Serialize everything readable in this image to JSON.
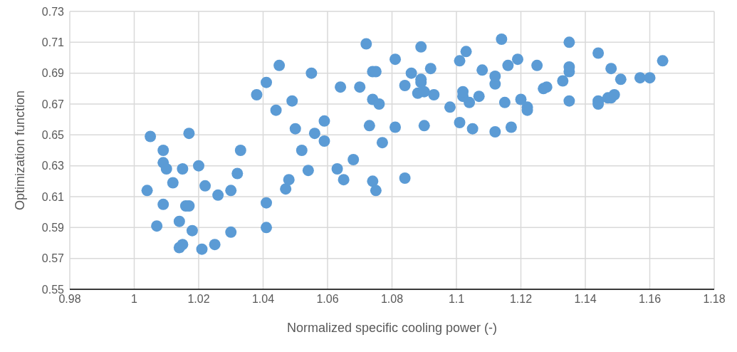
{
  "chart_data": {
    "type": "scatter",
    "xlabel": "Normalized specific cooling power (-)",
    "ylabel": "Optimization function",
    "color": "#5b9bd5",
    "marker": "circle",
    "grid": true,
    "legend": false,
    "xlim": [
      0.98,
      1.18
    ],
    "xticks": [
      0.98,
      1,
      1.02,
      1.04,
      1.06,
      1.08,
      1.1,
      1.12,
      1.14,
      1.16,
      1.18
    ],
    "ylim": [
      0.55,
      0.73
    ],
    "yticks": [
      0.55,
      0.57,
      0.59,
      0.61,
      0.63,
      0.65,
      0.67,
      0.69,
      0.71,
      0.73
    ],
    "x": [
      1.004,
      1.005,
      1.007,
      1.009,
      1.009,
      1.01,
      1.009,
      1.012,
      1.014,
      1.015,
      1.014,
      1.015,
      1.016,
      1.017,
      1.017,
      1.018,
      1.02,
      1.021,
      1.022,
      1.025,
      1.026,
      1.03,
      1.03,
      1.032,
      1.033,
      1.038,
      1.041,
      1.041,
      1.041,
      1.044,
      1.045,
      1.047,
      1.048,
      1.049,
      1.05,
      1.052,
      1.054,
      1.055,
      1.056,
      1.059,
      1.059,
      1.063,
      1.064,
      1.065,
      1.068,
      1.07,
      1.072,
      1.073,
      1.074,
      1.075,
      1.074,
      1.074,
      1.075,
      1.076,
      1.077,
      1.081,
      1.081,
      1.084,
      1.084,
      1.086,
      1.088,
      1.089,
      1.089,
      1.089,
      1.09,
      1.09,
      1.092,
      1.093,
      1.098,
      1.101,
      1.101,
      1.102,
      1.102,
      1.103,
      1.104,
      1.105,
      1.107,
      1.108,
      1.112,
      1.112,
      1.112,
      1.114,
      1.115,
      1.116,
      1.117,
      1.119,
      1.12,
      1.122,
      1.122,
      1.125,
      1.127,
      1.128,
      1.133,
      1.135,
      1.135,
      1.135,
      1.135,
      1.144,
      1.144,
      1.144,
      1.147,
      1.148,
      1.148,
      1.149,
      1.151,
      1.157,
      1.16,
      1.164
    ],
    "values": [
      0.614,
      0.649,
      0.591,
      0.632,
      0.64,
      0.628,
      0.605,
      0.619,
      0.594,
      0.628,
      0.577,
      0.579,
      0.604,
      0.604,
      0.651,
      0.588,
      0.63,
      0.576,
      0.617,
      0.579,
      0.611,
      0.614,
      0.587,
      0.625,
      0.64,
      0.676,
      0.606,
      0.59,
      0.684,
      0.666,
      0.695,
      0.615,
      0.621,
      0.672,
      0.654,
      0.64,
      0.627,
      0.69,
      0.651,
      0.659,
      0.646,
      0.628,
      0.681,
      0.621,
      0.634,
      0.681,
      0.709,
      0.656,
      0.691,
      0.691,
      0.673,
      0.62,
      0.614,
      0.67,
      0.645,
      0.655,
      0.699,
      0.682,
      0.622,
      0.69,
      0.677,
      0.707,
      0.684,
      0.686,
      0.678,
      0.656,
      0.693,
      0.676,
      0.668,
      0.698,
      0.658,
      0.675,
      0.678,
      0.704,
      0.671,
      0.654,
      0.675,
      0.692,
      0.683,
      0.688,
      0.652,
      0.712,
      0.671,
      0.695,
      0.655,
      0.699,
      0.673,
      0.668,
      0.666,
      0.695,
      0.68,
      0.681,
      0.685,
      0.71,
      0.694,
      0.691,
      0.672,
      0.703,
      0.672,
      0.67,
      0.674,
      0.674,
      0.693,
      0.676,
      0.686,
      0.687,
      0.687,
      0.698
    ]
  }
}
